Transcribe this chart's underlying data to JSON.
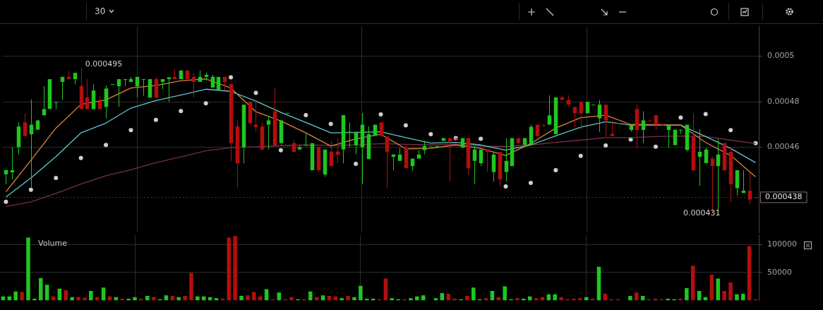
{
  "chart_data": [
    {
      "type": "candlestick",
      "tick_labels": "y",
      "grid": true,
      "annotations": [
        "30",
        "0.000495",
        "0.000431"
      ],
      "categories": [
        null,
        null,
        null,
        null,
        null,
        null,
        null,
        null,
        null,
        null,
        null,
        null,
        null,
        null,
        null,
        null,
        null,
        null,
        null,
        null,
        null,
        null,
        null,
        null,
        null,
        null,
        null,
        null,
        null,
        null,
        null,
        null,
        null,
        null,
        null,
        null,
        null,
        null,
        null,
        null,
        null,
        null,
        null,
        null,
        null,
        null,
        null,
        null,
        null,
        null,
        null,
        null,
        null,
        null,
        null,
        null,
        null,
        null,
        null,
        null,
        null,
        null,
        null,
        null,
        null,
        null,
        null,
        null,
        null,
        null,
        null,
        null,
        null,
        null,
        null,
        null,
        null,
        null,
        null,
        null,
        null,
        null,
        null,
        null,
        null,
        null,
        null,
        null,
        null,
        null,
        null,
        null,
        null,
        null,
        null,
        null,
        null,
        null,
        null,
        null,
        null,
        null,
        null,
        null,
        null,
        null,
        null,
        null,
        null,
        null,
        null,
        null,
        null,
        null,
        null,
        null,
        null,
        null,
        null,
        null,
        null
      ],
      "ohlc": [
        [
          0.0004481,
          0.00045,
          0.0004438,
          0.00045
        ],
        [
          0.000449,
          0.00046,
          0.0004459,
          0.0004499
        ],
        [
          0.00046,
          0.0004709,
          0.0004569,
          0.0004691
        ],
        [
          0.0004709,
          0.0004748,
          0.0004649,
          0.0004649
        ],
        [
          0.0004657,
          0.000481,
          0.0004423,
          0.0004699
        ],
        [
          0.0004677,
          0.0004718,
          0.0004677,
          0.0004718
        ],
        [
          0.000474,
          0.0004869,
          0.000474,
          0.0004768
        ],
        [
          0.0004768,
          0.0004899,
          0.0004768,
          0.0004899
        ],
        [
          0.0004798,
          0.0004798,
          0.0004768,
          0.0004798
        ],
        [
          0.0004887,
          0.0004909,
          0.0004808,
          0.0004909
        ],
        [
          0.0004909,
          0.0004935,
          0.0004899,
          0.0004899
        ],
        [
          0.0004899,
          0.0004927,
          0.0004876,
          0.0004927
        ],
        [
          0.0004869,
          0.000495,
          0.0004767,
          0.0004767
        ],
        [
          0.0004819,
          0.0004899,
          0.0004767,
          0.0004767
        ],
        [
          0.0004767,
          0.0004876,
          0.0004767,
          0.0004849
        ],
        [
          0.00048,
          0.0004827,
          0.0004767,
          0.0004767
        ],
        [
          0.0004777,
          0.0004871,
          0.0004727,
          0.0004858
        ],
        [
          0.0004877,
          0.0004877,
          0.0004877,
          0.0004877
        ],
        [
          0.0004868,
          0.0004899,
          0.0004777,
          0.0004899
        ],
        [
          0.0004899,
          0.0004899,
          0.0004868,
          0.0004899
        ],
        [
          0.0004887,
          0.0004909,
          0.0004887,
          0.0004899
        ],
        [
          0.0004867,
          0.0004909,
          0.0004819,
          0.0004909
        ],
        [
          0.0004899,
          0.0004899,
          0.0004826,
          0.0004899
        ],
        [
          0.0004818,
          0.0004899,
          0.0004818,
          0.0004899
        ],
        [
          0.0004899,
          0.0004909,
          0.0004817,
          0.0004817
        ],
        [
          0.0004887,
          0.0004899,
          0.0004855,
          0.0004899
        ],
        [
          0.0004899,
          0.0004907,
          0.00048,
          0.0004907
        ],
        [
          0.0004909,
          0.0004944,
          0.0004899,
          0.0004899
        ],
        [
          0.0004899,
          0.0004937,
          0.0004899,
          0.0004937
        ],
        [
          0.0004937,
          0.0004937,
          0.0004899,
          0.0004899
        ],
        [
          0.0004909,
          0.0004923,
          0.0004819,
          0.0004887
        ],
        [
          0.0004887,
          0.0004937,
          0.0004887,
          0.0004909
        ],
        [
          0.0004909,
          0.0004928,
          0.0004892,
          0.0004918
        ],
        [
          0.0004862,
          0.0004918,
          0.0004862,
          0.0004909
        ],
        [
          0.000485,
          0.0004909,
          0.000485,
          0.0004909
        ],
        [
          0.0004909,
          0.0004909,
          0.000485,
          0.0004887
        ],
        [
          0.0004878,
          0.0004878,
          0.000454,
          0.0004618
        ],
        [
          0.0004691,
          0.000472,
          0.0004423,
          0.0004529
        ],
        [
          0.00046,
          0.0004787,
          0.0004529,
          0.0004787
        ],
        [
          0.00048,
          0.00048,
          0.0004699,
          0.0004706
        ],
        [
          0.0004699,
          0.0004808,
          0.0004668,
          0.0004688
        ],
        [
          0.0004691,
          0.0004709,
          0.000459,
          0.000459
        ],
        [
          0.0004699,
          0.0004738,
          0.000459,
          0.0004718
        ],
        [
          0.0004758,
          0.000486,
          0.0004607,
          0.0004607
        ],
        [
          0.0004618,
          0.0004718,
          0.000461,
          0.0004718
        ],
        [
          0.0004751,
          0.0004751,
          0.0004751,
          0.0004751
        ],
        [
          0.0004618,
          0.0004628,
          0.0004579,
          0.0004579
        ],
        [
          0.000459,
          0.000461,
          0.000459,
          0.00046
        ],
        [
          0.000461,
          0.0004663,
          0.000461,
          0.000461
        ],
        [
          0.0004499,
          0.0004618,
          0.0004499,
          0.0004618
        ],
        [
          0.00046,
          0.00046,
          0.0004491,
          0.0004499
        ],
        [
          0.000448,
          0.000459,
          0.000447,
          0.000459
        ],
        [
          0.0004581,
          0.0004628,
          0.0004517,
          0.0004517
        ],
        [
          0.0004581,
          0.0004642,
          0.0004529,
          0.0004567
        ],
        [
          0.000459,
          0.0004741,
          0.0004529,
          0.0004741
        ],
        [
          0.0004668,
          0.0004709,
          0.00046,
          0.0004668
        ],
        [
          0.0004609,
          0.0004668,
          0.0004569,
          0.0004668
        ],
        [
          0.00046,
          0.0004751,
          0.0004438,
          0.0004699
        ],
        [
          0.0004548,
          0.0004691,
          0.0004548,
          0.0004657
        ],
        [
          0.000465,
          0.0004699,
          0.000465,
          0.0004699
        ],
        [
          0.0004709,
          0.0004709,
          0.0004649,
          0.0004649
        ],
        [
          0.0004647,
          0.0004647,
          0.0004422,
          0.0004579
        ],
        [
          0.0004558,
          0.0004568,
          0.0004498,
          0.0004568
        ],
        [
          0.000454,
          0.0004597,
          0.000454,
          0.0004568
        ],
        [
          0.0004597,
          0.0004605,
          0.0004508,
          0.0004508
        ],
        [
          0.0004517,
          0.000455,
          0.0004498,
          0.000455
        ],
        [
          0.000455,
          0.0004587,
          0.000455,
          0.0004568
        ],
        [
          0.0004587,
          0.0004628,
          0.0004568,
          0.0004605
        ],
        [
          0.0004603,
          0.0004603,
          0.0004603,
          0.0004603
        ],
        [
          0.0004598,
          0.0004605,
          0.0004598,
          0.0004605
        ],
        [
          0.0004628,
          0.000464,
          0.0004628,
          0.000464
        ],
        [
          0.000464,
          0.000464,
          0.0004449,
          0.0004626
        ],
        [
          0.000464,
          0.000464,
          0.0004628,
          0.000464
        ],
        [
          0.0004598,
          0.000464,
          0.0004598,
          0.000464
        ],
        [
          0.000464,
          0.000464,
          0.000448,
          0.0004508
        ],
        [
          0.000454,
          0.0004605,
          0.0004438,
          0.000459
        ],
        [
          0.000453,
          0.000459,
          0.0004517,
          0.000459
        ],
        [
          0.000459,
          0.000459,
          0.0004491,
          0.0004579
        ],
        [
          0.0004491,
          0.0004579,
          0.0004449,
          0.0004568
        ],
        [
          0.0004579,
          0.0004579,
          0.0004428,
          0.0004459
        ],
        [
          0.0004491,
          0.000464,
          0.0004449,
          0.000454
        ],
        [
          0.0004517,
          0.000464,
          0.0004517,
          0.000464
        ],
        [
          0.000464,
          0.000464,
          0.000461,
          0.0004618
        ],
        [
          0.000461,
          0.000464,
          0.000461,
          0.000464
        ],
        [
          0.000461,
          0.0004699,
          0.000461,
          0.000469
        ],
        [
          0.0004699,
          0.0004699,
          0.0004649,
          0.0004649
        ],
        [
          0.0004699,
          0.0004699,
          0.0004688,
          0.0004699
        ],
        [
          0.0004699,
          0.0004828,
          0.0004699,
          0.000474
        ],
        [
          0.0004657,
          0.0004819,
          0.0004657,
          0.0004819
        ],
        [
          0.0004819,
          0.0004828,
          0.0004808,
          0.0004808
        ],
        [
          0.0004808,
          0.0004828,
          0.0004777,
          0.0004787
        ],
        [
          0.0004777,
          0.0004777,
          0.0004688,
          0.0004749
        ],
        [
          0.0004799,
          0.0004799,
          0.0004678,
          0.0004749
        ],
        [
          0.0004749,
          0.0004799,
          0.0004749,
          0.0004799
        ],
        [
          0.0004787,
          0.0004787,
          0.0004787,
          0.0004787
        ],
        [
          0.0004727,
          0.0004808,
          0.0004668,
          0.0004787
        ],
        [
          0.0004787,
          0.0004787,
          0.0004647,
          0.0004718
        ],
        [
          0.0004659,
          0.0004718,
          0.0004649,
          0.0004649
        ],
        [
          0.0004706,
          0.0004706,
          0.0004706,
          0.0004706
        ],
        [
          0.0004706,
          0.0004706,
          0.0004706,
          0.0004706
        ],
        [
          0.0004676,
          0.0004696,
          0.0004668,
          0.0004696
        ],
        [
          0.0004768,
          0.0004788,
          0.0004598,
          0.0004676
        ],
        [
          0.0004676,
          0.0004758,
          0.0004618,
          0.0004718
        ],
        [
          0.0004718,
          0.0004718,
          0.0004718,
          0.0004718
        ],
        [
          0.0004741,
          0.0004741,
          0.0004676,
          0.0004699
        ],
        [
          0.0004699,
          0.0004699,
          0.0004699,
          0.0004699
        ],
        [
          0.0004676,
          0.0004696,
          0.0004598,
          0.0004696
        ],
        [
          0.0004609,
          0.0004677,
          0.0004609,
          0.0004677
        ],
        [
          0.0004677,
          0.0004677,
          0.0004659,
          0.0004677
        ],
        [
          0.0004588,
          0.0004699,
          0.0004581,
          0.0004699
        ],
        [
          0.0004647,
          0.0004748,
          0.0004498,
          0.0004498
        ],
        [
          0.0004558,
          0.0004678,
          0.000443,
          0.000458
        ],
        [
          0.000453,
          0.0004598,
          0.000453,
          0.000459
        ],
        [
          0.000455,
          0.0004558,
          0.000431,
          0.0004517
        ],
        [
          0.0004517,
          0.0004637,
          0.0004319,
          0.0004568
        ],
        [
          0.0004618,
          0.0004618,
          0.0004498,
          0.0004498
        ],
        [
          0.000458,
          0.0004598,
          0.0004357,
          0.0004438
        ],
        [
          0.000442,
          0.0004499,
          0.0004388,
          0.0004499
        ],
        [
          0.0004399,
          0.0004499,
          0.0004399,
          0.0004409
        ],
        [
          0.0004409,
          0.0004488,
          0.000435,
          0.000437
        ],
        [
          0.000438,
          0.000438,
          0.000438,
          0.000438
        ]
      ],
      "colors": [
        "#1ec71e",
        "#1ec71e",
        "#1ec71e",
        "#b40e0e",
        "#1ec71e",
        "#1ec71e",
        "#1ec71e",
        "#1ec71e",
        "#1ec71e",
        "#1ec71e",
        "#b40e0e",
        "#1ec71e",
        "#b40e0e",
        "#b40e0e",
        "#1ec71e",
        "#b40e0e",
        "#1ec71e",
        "#1ec71e",
        "#1ec71e",
        "#1ec71e",
        "#1ec71e",
        "#1ec71e",
        "#1ec71e",
        "#1ec71e",
        "#b40e0e",
        "#1ec71e",
        "#1ec71e",
        "#b40e0e",
        "#1ec71e",
        "#b40e0e",
        "#b40e0e",
        "#1ec71e",
        "#1ec71e",
        "#1ec71e",
        "#1ec71e",
        "#b40e0e",
        "#b40e0e",
        "#b40e0e",
        "#1ec71e",
        "#b40e0e",
        "#b40e0e",
        "#b40e0e",
        "#1ec71e",
        "#b40e0e",
        "#1ec71e",
        "#1ec71e",
        "#b40e0e",
        "#1ec71e",
        "#1ec71e",
        "#1ec71e",
        "#b40e0e",
        "#1ec71e",
        "#b40e0e",
        "#b40e0e",
        "#1ec71e",
        "#1ec71e",
        "#1ec71e",
        "#1ec71e",
        "#1ec71e",
        "#1ec71e",
        "#b40e0e",
        "#b40e0e",
        "#1ec71e",
        "#1ec71e",
        "#b40e0e",
        "#1ec71e",
        "#1ec71e",
        "#1ec71e",
        "#1ec71e",
        "#1ec71e",
        "#1ec71e",
        "#b40e0e",
        "#b40e0e",
        "#1ec71e",
        "#b40e0e",
        "#1ec71e",
        "#1ec71e",
        "#b40e0e",
        "#1ec71e",
        "#b40e0e",
        "#1ec71e",
        "#1ec71e",
        "#b40e0e",
        "#1ec71e",
        "#1ec71e",
        "#b40e0e",
        "#b40e0e",
        "#1ec71e",
        "#1ec71e",
        "#b40e0e",
        "#b40e0e",
        "#b40e0e",
        "#b40e0e",
        "#1ec71e",
        "#1ec71e",
        "#1ec71e",
        "#b40e0e",
        "#b40e0e",
        "#b40e0e",
        "#b40e0e",
        "#1ec71e",
        "#b40e0e",
        "#1ec71e",
        "#b40e0e",
        "#b40e0e",
        "#b40e0e",
        "#1ec71e",
        "#1ec71e",
        "#1ec71e",
        "#1ec71e",
        "#b40e0e",
        "#1ec71e",
        "#1ec71e",
        "#b40e0e",
        "#1ec71e",
        "#b40e0e",
        "#b40e0e",
        "#1ec71e",
        "#1ec71e",
        "#b40e0e",
        "#b40e0e"
      ],
      "series": [
        {
          "type": "line",
          "color": "#d9853b",
          "values": [
            0.0004404,
            null,
            null,
            null,
            0.0004543,
            null,
            null,
            null,
            0.0004684,
            null,
            null,
            null,
            0.0004788,
            null,
            null,
            null,
            0.0004808,
            null,
            null,
            null,
            0.000486,
            null,
            null,
            null,
            0.0004871,
            null,
            null,
            null,
            0.0004892,
            null,
            null,
            null,
            0.00049,
            null,
            null,
            null,
            0.000486,
            null,
            null,
            null,
            0.0004756,
            null,
            null,
            null,
            0.0004715,
            null,
            null,
            null,
            0.0004663,
            null,
            null,
            null,
            0.0004605,
            null,
            null,
            null,
            0.0004637,
            null,
            null,
            null,
            0.0004657,
            null,
            null,
            null,
            0.0004593,
            null,
            null,
            null,
            0.0004595,
            null,
            null,
            null,
            0.000461,
            null,
            null,
            null,
            0.0004595,
            null,
            null,
            null,
            0.0004564,
            null,
            null,
            null,
            0.0004616,
            null,
            null,
            null,
            0.0004684,
            null,
            null,
            null,
            0.000473,
            null,
            null,
            null,
            0.0004741,
            null,
            null,
            null,
            0.00047,
            null,
            null,
            null,
            0.0004699,
            null,
            null,
            null,
            0.0004697,
            null,
            null,
            null,
            0.0004621,
            null,
            null,
            null,
            0.0004564,
            null,
            null,
            null,
            0.000447
          ]
        },
        {
          "type": "line",
          "color": "#62c6cc",
          "values": [
            0.0004381,
            null,
            null,
            null,
            0.0004465,
            null,
            null,
            null,
            0.0004559,
            null,
            null,
            null,
            0.0004663,
            null,
            null,
            null,
            0.0004706,
            null,
            null,
            null,
            0.0004772,
            null,
            null,
            null,
            0.0004805,
            null,
            null,
            null,
            0.0004829,
            null,
            null,
            null,
            0.0004855,
            null,
            null,
            null,
            0.0004845,
            null,
            null,
            null,
            0.0004803,
            null,
            null,
            null,
            0.0004753,
            null,
            null,
            null,
            0.0004709,
            null,
            null,
            null,
            0.0004663,
            null,
            null,
            null,
            0.0004665,
            null,
            null,
            null,
            0.0004668,
            null,
            null,
            null,
            0.0004642,
            null,
            null,
            null,
            0.0004618,
            null,
            null,
            null,
            0.0004621,
            null,
            null,
            null,
            0.000461,
            null,
            null,
            null,
            0.0004587,
            null,
            null,
            null,
            0.000461,
            null,
            null,
            null,
            0.000465,
            null,
            null,
            null,
            0.0004688,
            null,
            null,
            null,
            0.0004712,
            null,
            null,
            null,
            0.0004697,
            null,
            null,
            null,
            null,
            null,
            null,
            null,
            0.0004697,
            null,
            null,
            null,
            0.0004647,
            null,
            null,
            null,
            0.0004595,
            null,
            null,
            null,
            0.0004532
          ]
        },
        {
          "type": "line",
          "color": "#7b2c4c",
          "values": [
            0.000434,
            null,
            null,
            null,
            0.000436,
            null,
            null,
            null,
            0.0004397,
            null,
            null,
            null,
            0.0004438,
            null,
            null,
            null,
            0.0004475,
            null,
            null,
            null,
            0.0004501,
            null,
            null,
            null,
            0.0004532,
            null,
            null,
            null,
            0.0004558,
            null,
            null,
            null,
            0.0004584,
            null,
            null,
            null,
            0.0004598,
            null,
            null,
            null,
            0.0004602,
            null,
            null,
            null,
            0.0004607,
            null,
            null,
            null,
            0.000461,
            null,
            null,
            null,
            0.0004608,
            null,
            null,
            null,
            0.000461,
            null,
            null,
            null,
            0.0004616,
            null,
            null,
            null,
            0.0004613,
            null,
            null,
            null,
            0.000461,
            null,
            null,
            null,
            0.0004613,
            null,
            null,
            null,
            0.0004605,
            null,
            null,
            null,
            0.0004603,
            null,
            null,
            null,
            0.000461,
            null,
            null,
            null,
            0.0004621,
            null,
            null,
            null,
            0.0004631,
            null,
            null,
            null,
            0.0004642,
            null,
            null,
            null,
            0.0004642,
            null,
            null,
            null,
            0.0004647,
            null,
            null,
            null,
            0.0004649,
            null,
            null,
            null,
            0.0004647,
            null,
            null,
            null,
            0.0004631,
            null,
            null,
            null,
            0.0004616
          ]
        },
        {
          "type": "scatter",
          "color": "#cfcfcf",
          "marker": "circle",
          "values": [
            0.000436,
            null,
            null,
            null,
            0.0004413,
            null,
            null,
            null,
            0.0004465,
            null,
            null,
            null,
            0.0004553,
            null,
            null,
            null,
            0.000461,
            null,
            null,
            null,
            0.0004675,
            null,
            null,
            null,
            0.000472,
            null,
            null,
            null,
            0.0004759,
            null,
            null,
            null,
            0.0004793,
            null,
            null,
            null,
            0.0004907,
            null,
            null,
            null,
            0.0004839,
            null,
            null,
            null,
            0.0004587,
            null,
            null,
            null,
            0.0004741,
            null,
            null,
            null,
            0.0004702,
            null,
            null,
            null,
            0.0004527,
            null,
            null,
            null,
            0.0004744,
            null,
            null,
            null,
            0.0004696,
            null,
            null,
            null,
            0.0004657,
            null,
            null,
            null,
            0.000464,
            null,
            null,
            null,
            0.0004637,
            null,
            null,
            null,
            0.0004428,
            null,
            null,
            null,
            0.0004443,
            null,
            null,
            null,
            0.0004499,
            null,
            null,
            null,
            0.0004562,
            null,
            null,
            null,
            0.0004608,
            null,
            null,
            null,
            0.0004634,
            null,
            null,
            null,
            0.0004602,
            null,
            null,
            null,
            0.000473,
            null,
            null,
            null,
            0.0004746,
            null,
            null,
            null,
            0.0004675,
            null,
            null,
            null,
            0.0004618
          ]
        }
      ],
      "ylim": [
        0.0004225,
        0.000513
      ],
      "yticks": [
        0.00046,
        0.00048,
        0.0005
      ],
      "ref_lines": [
        {
          "axis": "y",
          "value": 0.000438,
          "label": "0.000438",
          "color": "#b40e0e",
          "line_style": "dotted"
        }
      ]
    },
    {
      "type": "bar",
      "title": "Volume",
      "tick_labels": "y",
      "grid": true,
      "categories": [
        null,
        null,
        null,
        null,
        null,
        null,
        null,
        null,
        null,
        null,
        null,
        null,
        null,
        null,
        null,
        null,
        null,
        null,
        null,
        null,
        null,
        null,
        null,
        null,
        null,
        null,
        null,
        null,
        null,
        null,
        null,
        null,
        null,
        null,
        null,
        null,
        null,
        null,
        null,
        null,
        null,
        null,
        null,
        null,
        null,
        null,
        null,
        null,
        null,
        null,
        null,
        null,
        null,
        null,
        null,
        null,
        null,
        null,
        null,
        null,
        null,
        null,
        null,
        null,
        null,
        null,
        null,
        null,
        null,
        null,
        null,
        null,
        null,
        null,
        null,
        null,
        null,
        null,
        null,
        null,
        null,
        null,
        null,
        null,
        null,
        null,
        null,
        null,
        null,
        null,
        null,
        null,
        null,
        null,
        null,
        null,
        null,
        null,
        null,
        null,
        null,
        null,
        null,
        null,
        null,
        null,
        null,
        null,
        null,
        null,
        null,
        null,
        null,
        null,
        null,
        null,
        null,
        null,
        null,
        null,
        null
      ],
      "values": [
        7000,
        7000,
        16000,
        15000,
        112000,
        3000,
        40000,
        28000,
        7000,
        21000,
        18000,
        6000,
        6000,
        5000,
        17000,
        6000,
        23000,
        7000,
        6000,
        3000,
        3000,
        6000,
        3000,
        8000,
        6000,
        2000,
        9000,
        8000,
        6000,
        8000,
        49000,
        7000,
        7000,
        6000,
        4000,
        3000,
        112000,
        115000,
        8000,
        9000,
        15000,
        7000,
        20000,
        2000,
        14000,
        2000,
        6000,
        2000,
        2000,
        16000,
        6000,
        9000,
        8000,
        7000,
        4000,
        8000,
        6000,
        26000,
        3000,
        3000,
        2000,
        39000,
        4000,
        2000,
        2000,
        4000,
        7000,
        9000,
        0,
        4000,
        13000,
        12000,
        3000,
        2000,
        8000,
        23000,
        2000,
        4000,
        17000,
        6000,
        25000,
        2000,
        4000,
        3000,
        7000,
        4000,
        6000,
        11000,
        11000,
        6000,
        2000,
        3000,
        4000,
        6000,
        3000,
        60000,
        12000,
        2000,
        2000,
        0,
        8000,
        14000,
        8000,
        2000,
        3000,
        2000,
        3000,
        2000,
        3000,
        22000,
        62000,
        17000,
        6000,
        46000,
        39000,
        17000,
        32000,
        11000,
        12000,
        97000,
        2000
      ],
      "colors": [
        "#1ec71e",
        "#1ec71e",
        "#1ec71e",
        "#b40e0e",
        "#1ec71e",
        "#1ec71e",
        "#1ec71e",
        "#1ec71e",
        "#b40e0e",
        "#1ec71e",
        "#b40e0e",
        "#1ec71e",
        "#b40e0e",
        "#b40e0e",
        "#1ec71e",
        "#b40e0e",
        "#1ec71e",
        "#b40e0e",
        "#1ec71e",
        "#b40e0e",
        "#1ec71e",
        "#1ec71e",
        "#b40e0e",
        "#1ec71e",
        "#b40e0e",
        "#1ec71e",
        "#1ec71e",
        "#b40e0e",
        "#1ec71e",
        "#b40e0e",
        "#b40e0e",
        "#1ec71e",
        "#1ec71e",
        "#1ec71e",
        "#1ec71e",
        "#b40e0e",
        "#b40e0e",
        "#b40e0e",
        "#1ec71e",
        "#b40e0e",
        "#b40e0e",
        "#b40e0e",
        "#1ec71e",
        "#b40e0e",
        "#1ec71e",
        "#b40e0e",
        "#b40e0e",
        "#1ec71e",
        "#b40e0e",
        "#1ec71e",
        "#b40e0e",
        "#1ec71e",
        "#b40e0e",
        "#b40e0e",
        "#1ec71e",
        "#b40e0e",
        "#1ec71e",
        "#1ec71e",
        "#1ec71e",
        "#1ec71e",
        "#b40e0e",
        "#b40e0e",
        "#1ec71e",
        "#1ec71e",
        "#b40e0e",
        "#1ec71e",
        "#1ec71e",
        "#1ec71e",
        "#1ec71e",
        "#1ec71e",
        "#1ec71e",
        "#b40e0e",
        "#b40e0e",
        "#1ec71e",
        "#b40e0e",
        "#1ec71e",
        "#1ec71e",
        "#b40e0e",
        "#1ec71e",
        "#b40e0e",
        "#1ec71e",
        "#1ec71e",
        "#b40e0e",
        "#1ec71e",
        "#1ec71e",
        "#b40e0e",
        "#b40e0e",
        "#1ec71e",
        "#1ec71e",
        "#b40e0e",
        "#b40e0e",
        "#b40e0e",
        "#b40e0e",
        "#1ec71e",
        "#b40e0e",
        "#1ec71e",
        "#b40e0e",
        "#b40e0e",
        "#b40e0e",
        "#b40e0e",
        "#1ec71e",
        "#b40e0e",
        "#1ec71e",
        "#b40e0e",
        "#b40e0e",
        "#b40e0e",
        "#1ec71e",
        "#1ec71e",
        "#b40e0e",
        "#1ec71e",
        "#b40e0e",
        "#1ec71e",
        "#1ec71e",
        "#b40e0e",
        "#1ec71e",
        "#b40e0e",
        "#b40e0e",
        "#1ec71e",
        "#1ec71e",
        "#b40e0e",
        "#b40e0e"
      ],
      "ylim": [
        0,
        117000
      ],
      "yticks": [
        50000,
        100000
      ]
    }
  ]
}
